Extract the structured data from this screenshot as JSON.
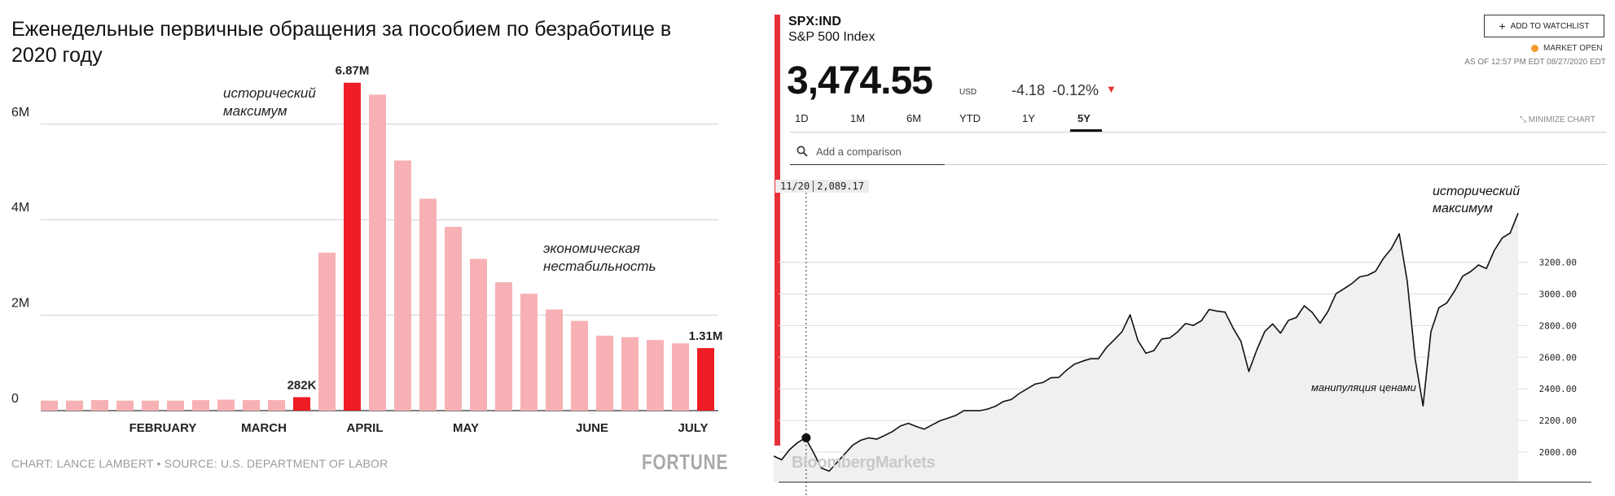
{
  "left": {
    "title": "Еженедельные первичные обращения за пособием по безработице в 2020 году",
    "source": "CHART: LANCE LAMBERT • SOURCE: U.S. DEPARTMENT OF LABOR",
    "logo": "FORTUNE",
    "chart_data": {
      "type": "bar",
      "values": [
        0.21,
        0.21,
        0.22,
        0.21,
        0.21,
        0.21,
        0.22,
        0.23,
        0.22,
        0.22,
        0.282,
        3.31,
        6.87,
        6.62,
        5.24,
        4.44,
        3.85,
        3.18,
        2.69,
        2.45,
        2.12,
        1.88,
        1.57,
        1.54,
        1.48,
        1.41,
        1.31
      ],
      "highlight_indices": [
        10,
        12,
        26
      ],
      "highlight_color": "#ee1c25",
      "base_color": "#f7b1b5",
      "ylim": [
        0,
        7
      ],
      "y_ticks": [
        {
          "value": 0,
          "label": "0"
        },
        {
          "value": 2,
          "label": "2M"
        },
        {
          "value": 4,
          "label": "4M"
        },
        {
          "value": 6,
          "label": "6M"
        }
      ],
      "x_labels": [
        {
          "label": "FEBRUARY",
          "after_bar": 4.5
        },
        {
          "label": "MARCH",
          "after_bar": 8.5
        },
        {
          "label": "APRIL",
          "after_bar": 12.5
        },
        {
          "label": "MAY",
          "after_bar": 16.5
        },
        {
          "label": "JUNE",
          "after_bar": 21.5
        },
        {
          "label": "JULY",
          "after_bar": 25.5
        }
      ],
      "data_labels": [
        {
          "bar": 10,
          "text": "282K"
        },
        {
          "bar": 12,
          "text": "6.87M"
        },
        {
          "bar": 26,
          "text": "1.31M"
        }
      ],
      "annotations": [
        {
          "text": "исторический максимум",
          "near": "peak"
        },
        {
          "text": "экономическая нестабильность",
          "near": "decline"
        }
      ]
    }
  },
  "right": {
    "ticker": "SPX:IND",
    "index_name": "S&P 500 Index",
    "price": "3,474.55",
    "currency": "USD",
    "change_abs": "-4.18",
    "change_pct": "-0.12%",
    "watchlist_label": "ADD TO WATCHLIST",
    "market_status": "MARKET OPEN",
    "as_of": "AS OF 12:57 PM EDT 08/27/2020 EDT",
    "range_tabs": [
      "1D",
      "1M",
      "6M",
      "YTD",
      "1Y",
      "5Y"
    ],
    "active_tab": "5Y",
    "minimize_label": "MINIMIZE CHART",
    "comparison_placeholder": "Add a comparison",
    "crosshair": {
      "date": "11/20",
      "value": "2,089.17"
    },
    "logo": "BloombergMarkets",
    "accent_color": "#e8303a",
    "chart_data": {
      "type": "line",
      "title": "",
      "ylim": [
        1810,
        3650
      ],
      "y_ticks": [
        "2000.00",
        "2200.00",
        "2400.00",
        "2600.00",
        "2800.00",
        "3000.00",
        "3200.00"
      ],
      "y_tick_values": [
        2000,
        2200,
        2400,
        2600,
        2800,
        3000,
        3200
      ],
      "series": [
        {
          "values": [
            1975,
            1952,
            2015,
            2060,
            2090,
            2000,
            1900,
            1880,
            1935,
            1990,
            2045,
            2075,
            2090,
            2082,
            2105,
            2130,
            2165,
            2182,
            2162,
            2145,
            2172,
            2198,
            2215,
            2232,
            2262,
            2262,
            2262,
            2272,
            2290,
            2320,
            2332,
            2370,
            2400,
            2430,
            2440,
            2470,
            2472,
            2519,
            2557,
            2575,
            2590,
            2590,
            2660,
            2710,
            2762,
            2868,
            2705,
            2625,
            2641,
            2715,
            2722,
            2760,
            2813,
            2801,
            2830,
            2902,
            2891,
            2885,
            2785,
            2700,
            2510,
            2645,
            2762,
            2810,
            2752,
            2833,
            2851,
            2925,
            2883,
            2815,
            2890,
            3001,
            3032,
            3065,
            3108,
            3118,
            3143,
            3225,
            3286,
            3380,
            3080,
            2590,
            2292,
            2761,
            2913,
            2943,
            3020,
            3112,
            3141,
            3183,
            3160,
            3275,
            3354,
            3385,
            3510
          ]
        }
      ],
      "annotations": [
        {
          "text": "исторический максимум"
        },
        {
          "text": "манипуляция ценами"
        }
      ]
    }
  }
}
